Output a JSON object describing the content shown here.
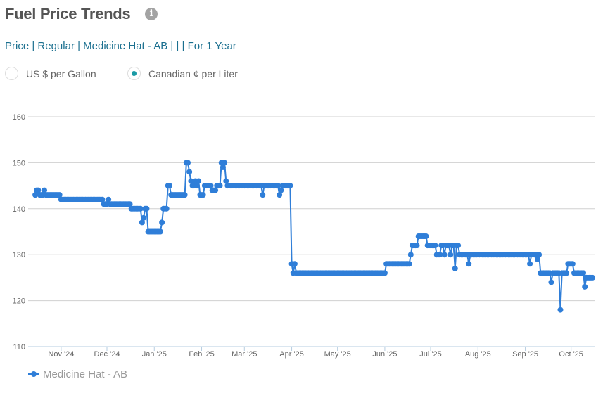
{
  "header": {
    "title": "Fuel Price Trends",
    "info_icon": "i"
  },
  "breadcrumb": "Price | Regular | Medicine Hat - AB | | | For 1 Year",
  "units": [
    {
      "label": "US $ per Gallon",
      "selected": false
    },
    {
      "label": "Canadian ¢ per Liter",
      "selected": true
    }
  ],
  "chart_data": {
    "type": "line",
    "title": "",
    "xlabel": "",
    "ylabel": "",
    "ylim": [
      110,
      160
    ],
    "yticks": [
      "110",
      "120",
      "130",
      "140",
      "150",
      "160"
    ],
    "x_start": "2024-10-15",
    "x_days": 365,
    "xticks": [
      {
        "label": "Nov '24",
        "day": 17
      },
      {
        "label": "Dec '24",
        "day": 47
      },
      {
        "label": "Jan '25",
        "day": 78
      },
      {
        "label": "Feb '25",
        "day": 109
      },
      {
        "label": "Mar '25",
        "day": 137
      },
      {
        "label": "Apr '25",
        "day": 168
      },
      {
        "label": "May '25",
        "day": 198
      },
      {
        "label": "Jun '25",
        "day": 229
      },
      {
        "label": "Jul '25",
        "day": 259
      },
      {
        "label": "Aug '25",
        "day": 290
      },
      {
        "label": "Sep '25",
        "day": 321
      },
      {
        "label": "Oct '25",
        "day": 351
      }
    ],
    "grid": true,
    "legend_position": "bottom-left",
    "series": [
      {
        "name": "Medicine Hat - AB",
        "color": "#2f7ed8",
        "steps": [
          [
            0,
            143
          ],
          [
            1,
            144
          ],
          [
            3,
            143
          ],
          [
            6,
            144
          ],
          [
            7,
            143
          ],
          [
            17,
            142
          ],
          [
            45,
            141
          ],
          [
            48,
            142
          ],
          [
            49,
            141
          ],
          [
            63,
            140
          ],
          [
            70,
            137
          ],
          [
            71,
            138
          ],
          [
            72,
            140
          ],
          [
            74,
            135
          ],
          [
            83,
            137
          ],
          [
            84,
            140
          ],
          [
            87,
            145
          ],
          [
            89,
            143
          ],
          [
            99,
            150
          ],
          [
            101,
            148
          ],
          [
            102,
            146
          ],
          [
            103,
            145
          ],
          [
            105,
            146
          ],
          [
            106,
            145
          ],
          [
            107,
            146
          ],
          [
            108,
            143
          ],
          [
            111,
            145
          ],
          [
            116,
            144
          ],
          [
            119,
            145
          ],
          [
            122,
            150
          ],
          [
            123,
            149
          ],
          [
            124,
            150
          ],
          [
            125,
            146
          ],
          [
            126,
            145
          ],
          [
            149,
            143
          ],
          [
            150,
            145
          ],
          [
            160,
            143
          ],
          [
            161,
            144
          ],
          [
            162,
            145
          ],
          [
            168,
            128
          ],
          [
            169,
            126
          ],
          [
            170,
            128
          ],
          [
            171,
            126
          ],
          [
            230,
            128
          ],
          [
            246,
            130
          ],
          [
            247,
            132
          ],
          [
            251,
            134
          ],
          [
            257,
            132
          ],
          [
            263,
            130
          ],
          [
            266,
            132
          ],
          [
            268,
            130
          ],
          [
            269,
            132
          ],
          [
            272,
            130
          ],
          [
            273,
            132
          ],
          [
            275,
            127
          ],
          [
            276,
            132
          ],
          [
            278,
            130
          ],
          [
            284,
            128
          ],
          [
            285,
            130
          ],
          [
            324,
            128
          ],
          [
            325,
            130
          ],
          [
            329,
            129
          ],
          [
            330,
            130
          ],
          [
            331,
            126
          ],
          [
            338,
            124
          ],
          [
            339,
            126
          ],
          [
            344,
            118
          ],
          [
            345,
            126
          ],
          [
            349,
            128
          ],
          [
            353,
            126
          ],
          [
            360,
            123
          ],
          [
            361,
            125
          ]
        ]
      }
    ]
  }
}
